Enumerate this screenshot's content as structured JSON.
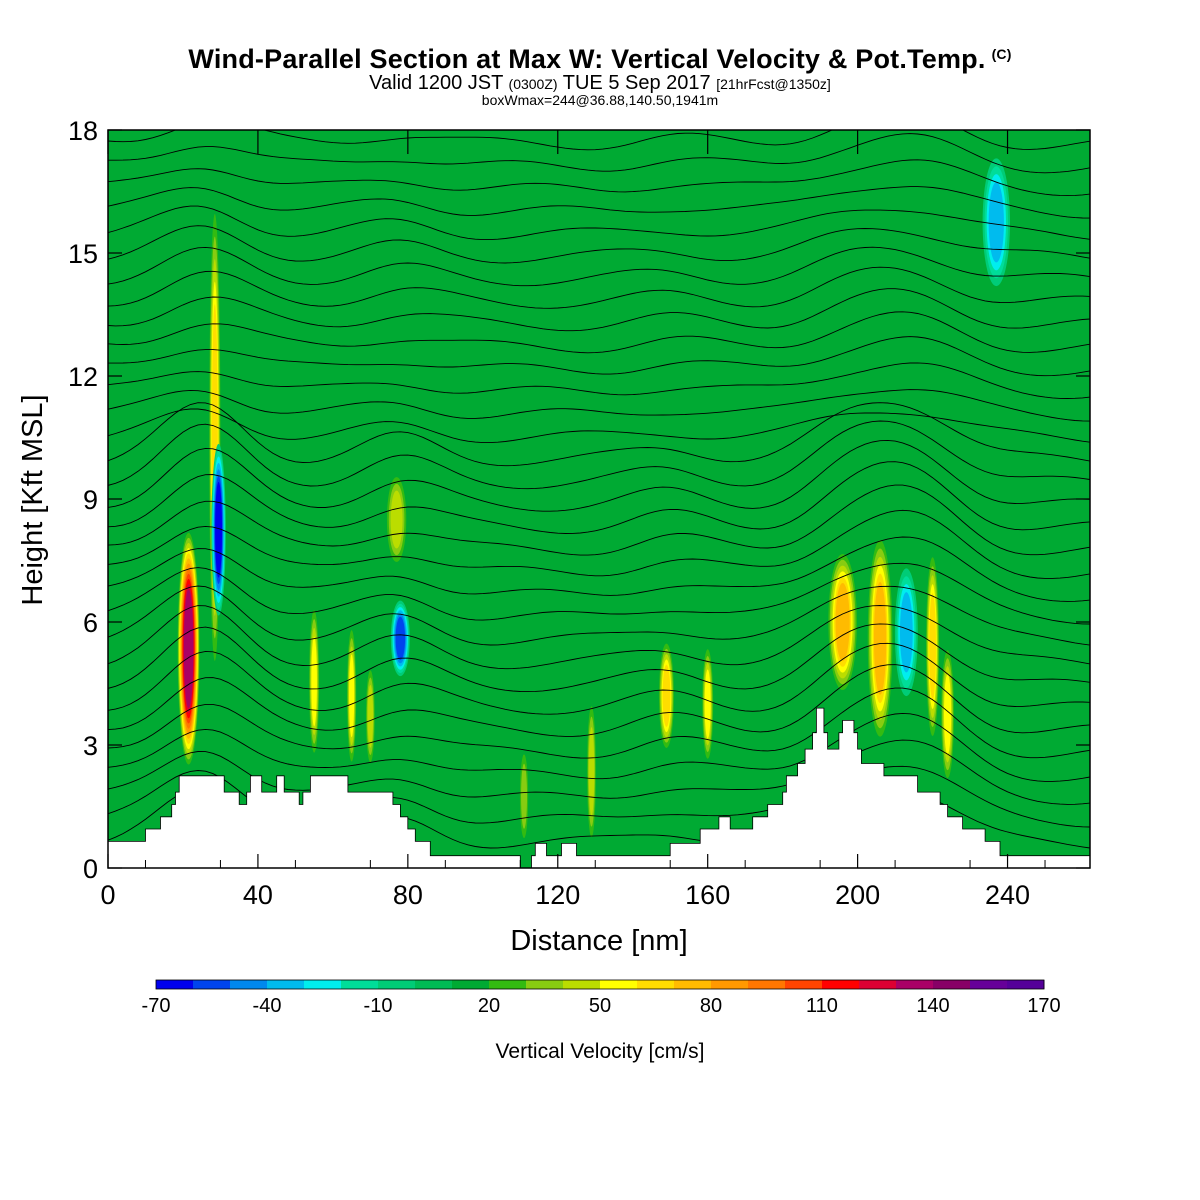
{
  "header": {
    "title": "Wind-Parallel Section at Max W: Vertical Velocity & Pot.Temp.",
    "title_mark": "(C)",
    "subtitle_a": "Valid 1200 JST",
    "subtitle_b": "(0300Z)",
    "subtitle_c": "TUE 5 Sep 2017",
    "subtitle_d": "[21hrFcst@1350z]",
    "info": "boxWmax=244@36.88,140.50,1941m"
  },
  "chart_data": {
    "type": "heatmap",
    "xlabel": "Distance [nm]",
    "ylabel": "Height [Kft MSL]",
    "xlim": [
      0,
      262
    ],
    "ylim": [
      0,
      18
    ],
    "x_ticks": [
      0,
      40,
      80,
      120,
      160,
      200,
      240
    ],
    "y_ticks": [
      0,
      3,
      6,
      9,
      12,
      15,
      18
    ],
    "grid": false,
    "background_category_value": 10,
    "terrain_kft": [
      [
        0,
        0.65
      ],
      [
        10,
        0.65
      ],
      [
        10,
        0.95
      ],
      [
        14,
        0.95
      ],
      [
        14,
        1.25
      ],
      [
        17,
        1.25
      ],
      [
        17,
        1.55
      ],
      [
        18,
        1.55
      ],
      [
        18,
        1.85
      ],
      [
        19,
        1.85
      ],
      [
        19,
        2.25
      ],
      [
        31,
        2.25
      ],
      [
        31,
        1.85
      ],
      [
        35,
        1.85
      ],
      [
        35,
        1.55
      ],
      [
        37,
        1.55
      ],
      [
        37,
        1.85
      ],
      [
        38,
        1.85
      ],
      [
        38,
        2.25
      ],
      [
        41,
        2.25
      ],
      [
        41,
        1.85
      ],
      [
        45,
        1.85
      ],
      [
        45,
        2.25
      ],
      [
        47,
        2.25
      ],
      [
        47,
        1.85
      ],
      [
        51,
        1.85
      ],
      [
        51,
        1.55
      ],
      [
        52,
        1.55
      ],
      [
        52,
        1.85
      ],
      [
        54,
        1.85
      ],
      [
        54,
        2.25
      ],
      [
        64,
        2.25
      ],
      [
        64,
        1.85
      ],
      [
        76,
        1.85
      ],
      [
        76,
        1.55
      ],
      [
        78,
        1.55
      ],
      [
        78,
        1.25
      ],
      [
        80,
        1.25
      ],
      [
        80,
        0.95
      ],
      [
        82,
        0.95
      ],
      [
        82,
        0.65
      ],
      [
        86,
        0.65
      ],
      [
        86,
        0.3
      ],
      [
        110,
        0.3
      ],
      [
        110,
        0
      ],
      [
        113,
        0
      ],
      [
        113,
        0.3
      ],
      [
        114,
        0.3
      ],
      [
        114,
        0.6
      ],
      [
        117,
        0.6
      ],
      [
        117,
        0.3
      ],
      [
        121,
        0.3
      ],
      [
        121,
        0.6
      ],
      [
        125,
        0.6
      ],
      [
        125,
        0.3
      ],
      [
        150,
        0.3
      ],
      [
        150,
        0.6
      ],
      [
        158,
        0.6
      ],
      [
        158,
        0.95
      ],
      [
        163,
        0.95
      ],
      [
        163,
        1.25
      ],
      [
        166,
        1.25
      ],
      [
        166,
        0.95
      ],
      [
        172,
        0.95
      ],
      [
        172,
        1.25
      ],
      [
        176,
        1.25
      ],
      [
        176,
        1.55
      ],
      [
        180,
        1.55
      ],
      [
        180,
        1.85
      ],
      [
        181,
        1.85
      ],
      [
        181,
        2.25
      ],
      [
        184,
        2.25
      ],
      [
        184,
        2.55
      ],
      [
        186,
        2.55
      ],
      [
        186,
        2.9
      ],
      [
        188,
        2.9
      ],
      [
        188,
        3.3
      ],
      [
        189,
        3.3
      ],
      [
        189,
        3.9
      ],
      [
        191,
        3.9
      ],
      [
        191,
        3.3
      ],
      [
        192,
        3.3
      ],
      [
        192,
        2.9
      ],
      [
        195,
        2.9
      ],
      [
        195,
        3.3
      ],
      [
        196,
        3.3
      ],
      [
        196,
        3.6
      ],
      [
        199,
        3.6
      ],
      [
        199,
        3.3
      ],
      [
        200,
        3.3
      ],
      [
        200,
        2.9
      ],
      [
        201,
        2.9
      ],
      [
        201,
        2.55
      ],
      [
        207,
        2.55
      ],
      [
        207,
        2.25
      ],
      [
        216,
        2.25
      ],
      [
        216,
        1.85
      ],
      [
        222,
        1.85
      ],
      [
        222,
        1.55
      ],
      [
        224,
        1.55
      ],
      [
        224,
        1.25
      ],
      [
        228,
        1.25
      ],
      [
        228,
        0.95
      ],
      [
        234,
        0.95
      ],
      [
        234,
        0.65
      ],
      [
        238,
        0.65
      ],
      [
        238,
        0.3
      ],
      [
        262,
        0.3
      ]
    ],
    "vertical_velocity_features": [
      {
        "x": 21.5,
        "z_bottom": 2.4,
        "z_top": 8.3,
        "peak_cms": 130,
        "width_nm": 2.2
      },
      {
        "x": 28.5,
        "z_bottom": 4.5,
        "z_top": 16.5,
        "peak_cms": 60,
        "width_nm": 1.2
      },
      {
        "x": 29.5,
        "z_bottom": 6.0,
        "z_top": 10.5,
        "peak_cms": -60,
        "width_nm": 1.5
      },
      {
        "x": 55.0,
        "z_bottom": 2.6,
        "z_top": 6.5,
        "peak_cms": 55,
        "width_nm": 1.1
      },
      {
        "x": 65.0,
        "z_bottom": 2.4,
        "z_top": 6.0,
        "peak_cms": 50,
        "width_nm": 1.0
      },
      {
        "x": 70.0,
        "z_bottom": 2.4,
        "z_top": 5.0,
        "peak_cms": 45,
        "width_nm": 1.0
      },
      {
        "x": 78.0,
        "z_bottom": 4.6,
        "z_top": 6.6,
        "peak_cms": -50,
        "width_nm": 2.0
      },
      {
        "x": 77.0,
        "z_bottom": 7.3,
        "z_top": 9.7,
        "peak_cms": 45,
        "width_nm": 2.2
      },
      {
        "x": 111.0,
        "z_bottom": 0.5,
        "z_top": 3.0,
        "peak_cms": 35,
        "width_nm": 1.0
      },
      {
        "x": 129.0,
        "z_bottom": 0.5,
        "z_top": 4.2,
        "peak_cms": 45,
        "width_nm": 1.0
      },
      {
        "x": 149.0,
        "z_bottom": 2.8,
        "z_top": 5.6,
        "peak_cms": 60,
        "width_nm": 1.6
      },
      {
        "x": 160.0,
        "z_bottom": 2.5,
        "z_top": 5.5,
        "peak_cms": 50,
        "width_nm": 1.2
      },
      {
        "x": 196.0,
        "z_bottom": 4.2,
        "z_top": 7.8,
        "peak_cms": 70,
        "width_nm": 3.0
      },
      {
        "x": 206.0,
        "z_bottom": 3.0,
        "z_top": 8.2,
        "peak_cms": 75,
        "width_nm": 2.6
      },
      {
        "x": 220.0,
        "z_bottom": 3.0,
        "z_top": 7.8,
        "peak_cms": 60,
        "width_nm": 1.4
      },
      {
        "x": 224.0,
        "z_bottom": 2.0,
        "z_top": 5.5,
        "peak_cms": 55,
        "width_nm": 1.4
      },
      {
        "x": 213.0,
        "z_bottom": 4.0,
        "z_top": 7.5,
        "peak_cms": -35,
        "width_nm": 2.5
      },
      {
        "x": 237.0,
        "z_bottom": 14.0,
        "z_top": 17.5,
        "peak_cms": -30,
        "width_nm": 3.0
      }
    ],
    "potential_temperature_contours": {
      "count": 32,
      "color": "#000000"
    },
    "colorbar": {
      "label": "Vertical Velocity [cm/s]",
      "levels": [
        -70,
        -60,
        -50,
        -40,
        -30,
        -20,
        -10,
        0,
        10,
        20,
        30,
        40,
        50,
        60,
        70,
        80,
        90,
        100,
        110,
        120,
        130,
        140,
        150,
        160,
        170
      ],
      "tick_labels": [
        "-70",
        "-40",
        "-10",
        "20",
        "50",
        "80",
        "110",
        "140",
        "170"
      ],
      "colors": [
        "#0000ee",
        "#0044ee",
        "#0088ee",
        "#00bbee",
        "#00eeee",
        "#00dd99",
        "#00cc77",
        "#00bb55",
        "#00aa33",
        "#33bb11",
        "#88cc11",
        "#bbdd00",
        "#ffff00",
        "#ffdd00",
        "#ffbb00",
        "#ff9900",
        "#ff7700",
        "#ff4400",
        "#ff0000",
        "#dd0033",
        "#aa0066",
        "#880066",
        "#660099",
        "#550099"
      ]
    }
  }
}
